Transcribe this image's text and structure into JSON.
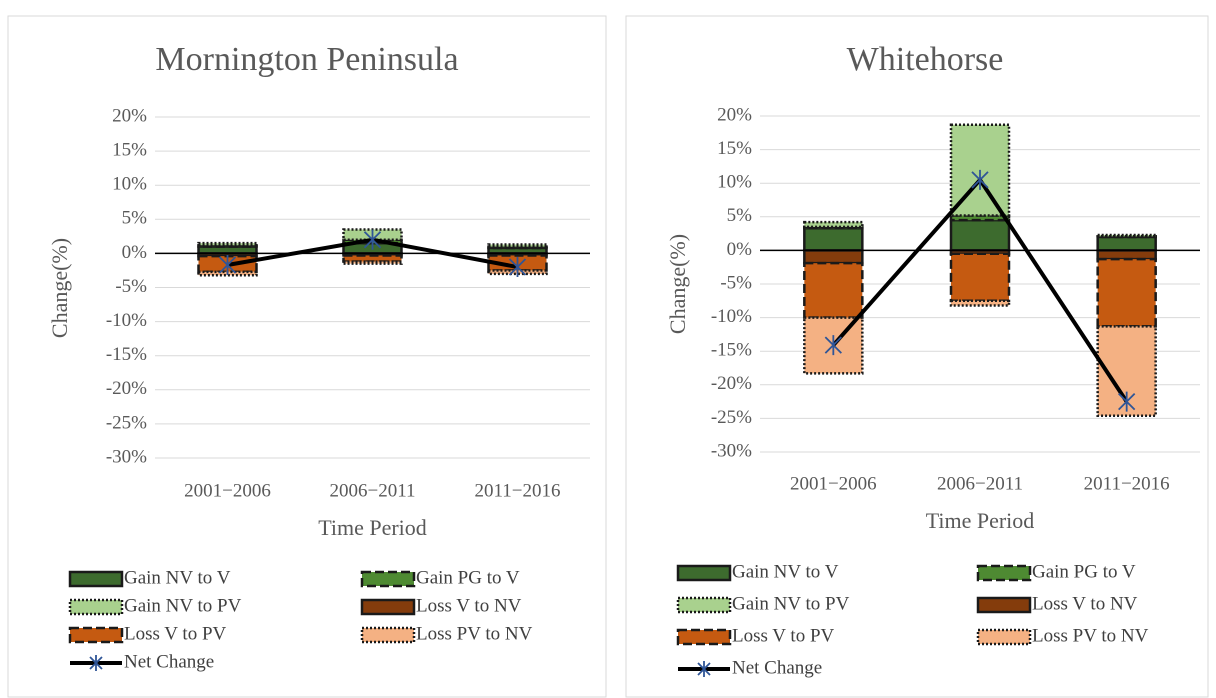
{
  "chart_data": [
    {
      "type": "bar",
      "stacked": true,
      "title": "Mornington Peninsula",
      "x_label": "Time Period",
      "y_label": "Change(%)",
      "categories": [
        "2001−2006",
        "2006−2011",
        "2011−2016"
      ],
      "series": [
        {
          "name": "Gain NV to V",
          "color": "#3d6b2e",
          "border": "solid",
          "values": [
            1.0,
            1.5,
            0.8
          ]
        },
        {
          "name": "Gain PG to V",
          "color": "#4e8a32",
          "border": "dashed",
          "values": [
            0.2,
            0.5,
            0.2
          ]
        },
        {
          "name": "Gain NV to PV",
          "color": "#a9d18e",
          "border": "dotted",
          "values": [
            0.3,
            1.5,
            0.3
          ]
        },
        {
          "name": "Loss V to NV",
          "color": "#843c0c",
          "border": "solid",
          "values": [
            -0.4,
            -0.3,
            -0.3
          ]
        },
        {
          "name": "Loss V to PV",
          "color": "#c55a11",
          "border": "dashed",
          "values": [
            -2.3,
            -0.9,
            -2.2
          ]
        },
        {
          "name": "Loss PV to NV",
          "color": "#f4b183",
          "border": "dotted",
          "values": [
            -0.5,
            -0.3,
            -0.5
          ]
        },
        {
          "name": "Net Change",
          "type": "line",
          "color": "#000000",
          "marker_color": "#2f5597",
          "values": [
            -1.7,
            2.0,
            -2.0
          ]
        }
      ],
      "ylim": [
        -30,
        20
      ],
      "yticks": [
        {
          "value": -30,
          "label": "-30%"
        },
        {
          "value": -25,
          "label": "-25%"
        },
        {
          "value": -20,
          "label": "-20%"
        },
        {
          "value": -15,
          "label": "-15%"
        },
        {
          "value": -10,
          "label": "-10%"
        },
        {
          "value": -5,
          "label": "-5%"
        },
        {
          "value": 0,
          "label": "0%"
        },
        {
          "value": 5,
          "label": "5%"
        },
        {
          "value": 10,
          "label": "10%"
        },
        {
          "value": 15,
          "label": "15%"
        },
        {
          "value": 20,
          "label": "20%"
        }
      ],
      "grid": true
    },
    {
      "type": "bar",
      "stacked": true,
      "title": "Whitehorse",
      "x_label": "Time Period",
      "y_label": "Change(%)",
      "categories": [
        "2001−2006",
        "2006−2011",
        "2011−2016"
      ],
      "series": [
        {
          "name": "Gain NV to V",
          "color": "#3d6b2e",
          "border": "solid",
          "values": [
            3.3,
            4.5,
            2.0
          ]
        },
        {
          "name": "Gain PG to V",
          "color": "#4e8a32",
          "border": "dashed",
          "values": [
            0.2,
            0.7,
            0.1
          ]
        },
        {
          "name": "Gain NV to PV",
          "color": "#a9d18e",
          "border": "dotted",
          "values": [
            0.7,
            13.5,
            0.2
          ]
        },
        {
          "name": "Loss V to NV",
          "color": "#843c0c",
          "border": "solid",
          "values": [
            -1.9,
            -0.5,
            -1.3
          ]
        },
        {
          "name": "Loss V to PV",
          "color": "#c55a11",
          "border": "dashed",
          "values": [
            -8.1,
            -7.0,
            -10.0
          ]
        },
        {
          "name": "Loss PV to NV",
          "color": "#f4b183",
          "border": "dotted",
          "values": [
            -8.3,
            -0.7,
            -13.3
          ]
        },
        {
          "name": "Net Change",
          "type": "line",
          "color": "#000000",
          "marker_color": "#2f5597",
          "values": [
            -14.1,
            10.5,
            -22.5
          ]
        }
      ],
      "ylim": [
        -30,
        20
      ],
      "yticks": [
        {
          "value": -30,
          "label": "-30%"
        },
        {
          "value": -25,
          "label": "-25%"
        },
        {
          "value": -20,
          "label": "-20%"
        },
        {
          "value": -15,
          "label": "-15%"
        },
        {
          "value": -10,
          "label": "-10%"
        },
        {
          "value": -5,
          "label": "-5%"
        },
        {
          "value": 0,
          "label": "0%"
        },
        {
          "value": 5,
          "label": "5%"
        },
        {
          "value": 10,
          "label": "10%"
        },
        {
          "value": 15,
          "label": "15%"
        },
        {
          "value": 20,
          "label": "20%"
        }
      ],
      "grid": true
    }
  ]
}
